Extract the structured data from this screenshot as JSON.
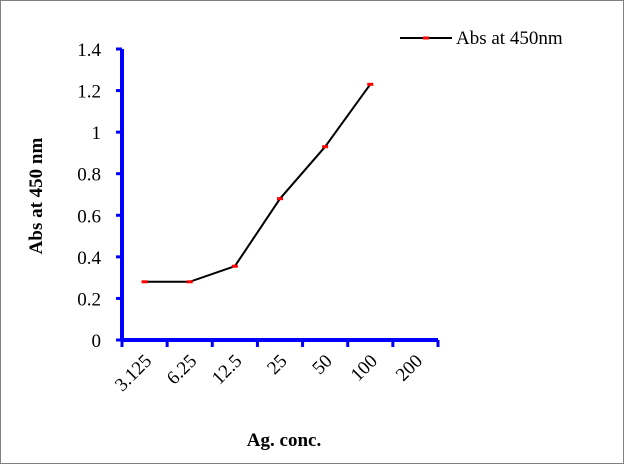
{
  "chart_data": {
    "type": "line",
    "categories": [
      "3.125",
      "6.25",
      "12.5",
      "25",
      "50",
      "100",
      "200"
    ],
    "series": [
      {
        "name": "Abs at 450nm",
        "values": [
          0.28,
          0.28,
          0.355,
          0.68,
          0.93,
          1.23,
          null
        ]
      }
    ],
    "xlabel": "Ag. conc.",
    "ylabel": "Abs at 450 nm",
    "ylim": [
      0,
      1.4
    ],
    "yticks": [
      "0",
      "0.2",
      "0.4",
      "0.6",
      "0.8",
      "1",
      "1.2",
      "1.4"
    ],
    "grid": false,
    "legend": "top-right",
    "colors": {
      "line": "#000000",
      "marker": "#ff0000",
      "axis": "#0000ff"
    }
  }
}
